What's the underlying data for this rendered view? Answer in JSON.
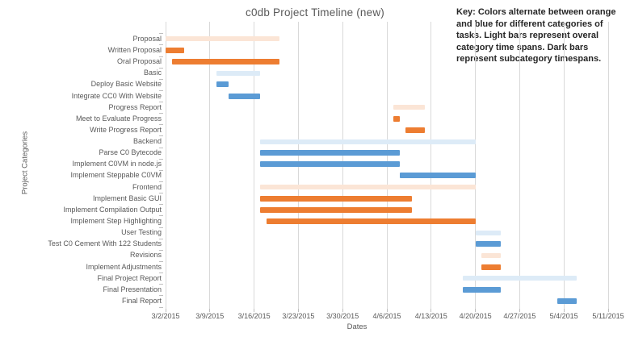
{
  "chart": {
    "title": "c0db Project Timeline (new)",
    "x_axis_title": "Dates",
    "y_axis_title": "Project Categories",
    "key_note": {
      "lines": [
        "Key: Colors alternate between orange",
        "and blue for different categories of",
        "tasks. Light bars represent overal",
        "category time spans. Dark bars",
        "represent subcategory timespans."
      ]
    },
    "colors": {
      "light_orange": "#FBE5D6",
      "dark_orange": "#ED7D31",
      "light_blue": "#DDEBF7",
      "dark_blue": "#5B9BD5",
      "gridline": "#D9D9D9",
      "axis_text": "#595959"
    }
  },
  "chart_data": {
    "type": "bar",
    "subtype": "gantt",
    "title": "c0db Project Timeline (new)",
    "xlabel": "Dates",
    "ylabel": "Project Categories",
    "x_range": [
      "3/2/2015",
      "5/11/2015"
    ],
    "x_ticks": [
      "3/2/2015",
      "3/9/2015",
      "3/16/2015",
      "3/23/2015",
      "3/30/2015",
      "4/6/2015",
      "4/13/2015",
      "4/20/2015",
      "4/27/2015",
      "5/4/2015",
      "5/11/2015"
    ],
    "grid": true,
    "legend": "none",
    "tasks": [
      {
        "label": "Proposal",
        "start": "3/2/2015",
        "end": "3/20/2015",
        "style": "light_orange"
      },
      {
        "label": "Written Proposal",
        "start": "3/2/2015",
        "end": "3/5/2015",
        "style": "dark_orange"
      },
      {
        "label": "Oral Proposal",
        "start": "3/3/2015",
        "end": "3/20/2015",
        "style": "dark_orange"
      },
      {
        "label": "Basic",
        "start": "3/10/2015",
        "end": "3/17/2015",
        "style": "light_blue"
      },
      {
        "label": "Deploy Basic Website",
        "start": "3/10/2015",
        "end": "3/12/2015",
        "style": "dark_blue"
      },
      {
        "label": "Integrate CC0 With Website",
        "start": "3/12/2015",
        "end": "3/17/2015",
        "style": "dark_blue"
      },
      {
        "label": "Progress Report",
        "start": "4/7/2015",
        "end": "4/12/2015",
        "style": "light_orange"
      },
      {
        "label": "Meet to Evaluate Progress",
        "start": "4/7/2015",
        "end": "4/8/2015",
        "style": "dark_orange"
      },
      {
        "label": "Write Progress Report",
        "start": "4/9/2015",
        "end": "4/12/2015",
        "style": "dark_orange"
      },
      {
        "label": "Backend",
        "start": "3/17/2015",
        "end": "4/20/2015",
        "style": "light_blue"
      },
      {
        "label": "Parse C0 Bytecode",
        "start": "3/17/2015",
        "end": "4/8/2015",
        "style": "dark_blue"
      },
      {
        "label": "Implement C0VM in node.js",
        "start": "3/17/2015",
        "end": "4/8/2015",
        "style": "dark_blue"
      },
      {
        "label": "Implement Steppable C0VM",
        "start": "4/8/2015",
        "end": "4/20/2015",
        "style": "dark_blue"
      },
      {
        "label": "Frontend",
        "start": "3/17/2015",
        "end": "4/20/2015",
        "style": "light_orange"
      },
      {
        "label": "Implement Basic GUI",
        "start": "3/17/2015",
        "end": "4/10/2015",
        "style": "dark_orange"
      },
      {
        "label": "Implement Compilation Output",
        "start": "3/17/2015",
        "end": "4/10/2015",
        "style": "dark_orange"
      },
      {
        "label": "Implement Step Highlighting",
        "start": "3/18/2015",
        "end": "4/20/2015",
        "style": "dark_orange"
      },
      {
        "label": "User Testing",
        "start": "4/20/2015",
        "end": "4/24/2015",
        "style": "light_blue"
      },
      {
        "label": "Test C0 Cement With 122 Students",
        "start": "4/20/2015",
        "end": "4/24/2015",
        "style": "dark_blue"
      },
      {
        "label": "Revisions",
        "start": "4/21/2015",
        "end": "4/24/2015",
        "style": "light_orange"
      },
      {
        "label": "Implement Adjustments",
        "start": "4/21/2015",
        "end": "4/24/2015",
        "style": "dark_orange"
      },
      {
        "label": "Final Project Report",
        "start": "4/18/2015",
        "end": "5/6/2015",
        "style": "light_blue"
      },
      {
        "label": "Final Presentation",
        "start": "4/18/2015",
        "end": "4/24/2015",
        "style": "dark_blue"
      },
      {
        "label": "Final Report",
        "start": "5/3/2015",
        "end": "5/6/2015",
        "style": "dark_blue"
      }
    ]
  }
}
